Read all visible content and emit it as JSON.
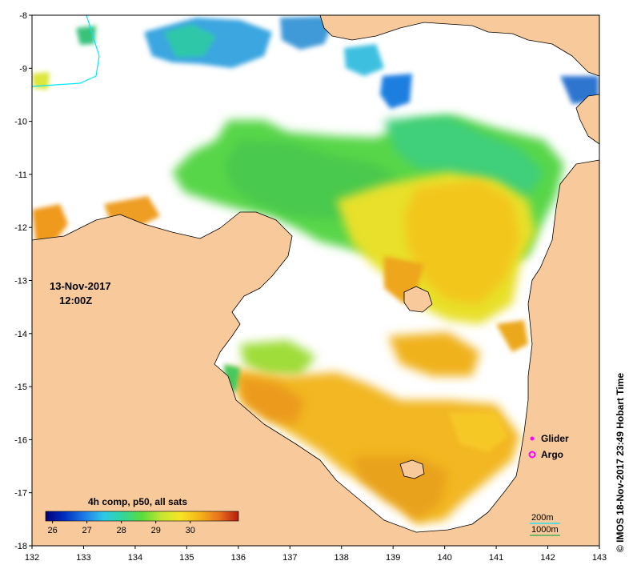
{
  "map": {
    "lon_range": [
      132,
      143
    ],
    "lat_range": [
      -18,
      -8
    ],
    "lon_ticks": [
      "132",
      "133",
      "134",
      "135",
      "136",
      "137",
      "138",
      "139",
      "140",
      "141",
      "142",
      "143"
    ],
    "lat_ticks": [
      "-8",
      "-9",
      "-10",
      "-11",
      "-12",
      "-13",
      "-14",
      "-15",
      "-16",
      "-17",
      "-18"
    ],
    "date_label": "13-Nov-2017",
    "time_label": "12:00Z",
    "credit": "© IMOS 18-Nov-2017 23:49 Hobart Time",
    "colors": {
      "land": "#f8c99a",
      "no_data": "#ffffff",
      "coast": "#000000",
      "contour_200m": "#00e5ff",
      "contour_1000m": "#2aa84a"
    }
  },
  "legend_markers": {
    "glider_label": "Glider",
    "argo_label": "Argo",
    "glider_color": "#ff00ff",
    "argo_color": "#ff00ff"
  },
  "contour_legend": {
    "label_200": "200m",
    "label_1000": "1000m"
  },
  "colorbar": {
    "title": "4h comp, p50, all sats",
    "ticks": [
      "26",
      "27",
      "28",
      "29",
      "30"
    ],
    "range": [
      25.8,
      31.4
    ],
    "stops": [
      "#00007a",
      "#0030c0",
      "#1e7be6",
      "#2fc7e8",
      "#30d79a",
      "#59dc3c",
      "#c6e631",
      "#f7e524",
      "#f4b31a",
      "#e9731d",
      "#b51a10"
    ]
  }
}
